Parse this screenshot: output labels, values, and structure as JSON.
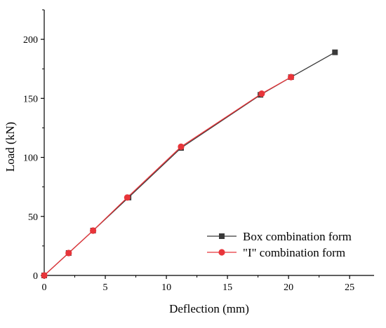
{
  "chart_data": {
    "type": "line",
    "xlabel": "Deflection (mm)",
    "ylabel": "Load (kN)",
    "xlim": [
      0,
      27
    ],
    "ylim": [
      0,
      225
    ],
    "x_ticks": [
      0,
      5,
      10,
      15,
      20,
      25
    ],
    "y_ticks": [
      0,
      50,
      100,
      150,
      200
    ],
    "x_tick_labels": [
      "0",
      "5",
      "10",
      "15",
      "20",
      "25"
    ],
    "y_tick_labels": [
      "0",
      "50",
      "100",
      "150",
      "200"
    ],
    "grid": false,
    "legend_position": "bottom-right",
    "series": [
      {
        "name": "Box combination form",
        "color": "#3a3a3a",
        "marker": "square",
        "x": [
          0,
          2.0,
          4.0,
          6.9,
          11.2,
          17.7,
          20.2,
          23.8
        ],
        "y": [
          0,
          19,
          38,
          66,
          108,
          153,
          168,
          189
        ]
      },
      {
        "name": "\"I\" combination form",
        "color": "#e8353a",
        "marker": "circle",
        "x": [
          0,
          2.0,
          4.0,
          6.8,
          11.2,
          17.8,
          20.2
        ],
        "y": [
          0,
          19,
          38,
          66,
          109,
          154,
          168
        ]
      }
    ]
  }
}
